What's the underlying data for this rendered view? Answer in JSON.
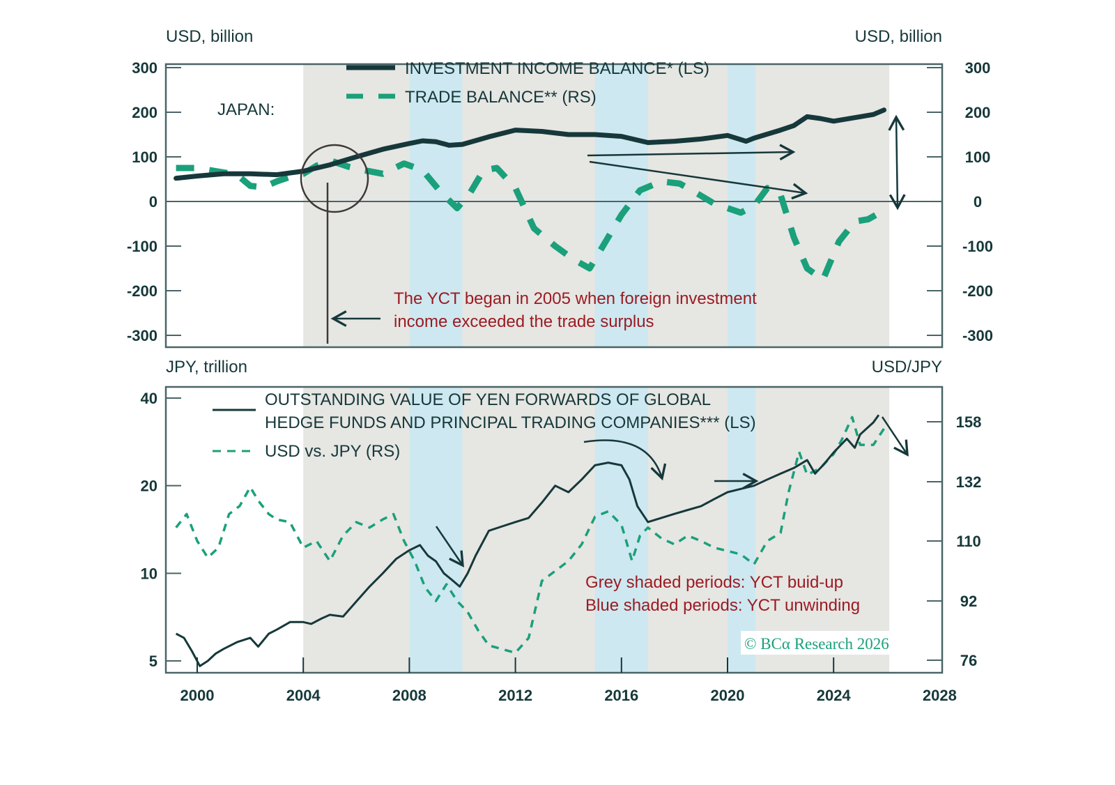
{
  "colors": {
    "dark": "#16383a",
    "green": "#1aa07a",
    "grey_shade": "#e6e6e3",
    "blue_shade": "#cde8f0",
    "annotation_red": "#9b1b22",
    "axis": "#4a6467"
  },
  "chart_data": [
    {
      "id": "top",
      "type": "line",
      "region_label": "JAPAN:",
      "left_axis_label": "USD, billion",
      "right_axis_label": "USD, billion",
      "ylim": [
        -300,
        300
      ],
      "yticks": [
        300,
        200,
        100,
        0,
        -100,
        -200,
        -300
      ],
      "yticks_right": [
        300,
        200,
        100,
        0,
        -100,
        -200,
        -300
      ],
      "xlim": [
        1998.8,
        2028
      ],
      "legend": [
        {
          "label": "INVESTMENT INCOME BALANCE* (LS)",
          "style": "solid-thick"
        },
        {
          "label": "TRADE BALANCE** (RS)",
          "style": "dashed"
        }
      ],
      "series": [
        {
          "name": "INVESTMENT INCOME BALANCE* (LS)",
          "axis": "left",
          "x": [
            1999.2,
            2000,
            2001,
            2002,
            2003,
            2004,
            2005,
            2006,
            2007,
            2008,
            2008.5,
            2009,
            2009.5,
            2010,
            2011,
            2012,
            2013,
            2014,
            2015,
            2016,
            2017,
            2018,
            2019,
            2020,
            2020.7,
            2021,
            2022,
            2022.5,
            2023,
            2023.5,
            2024,
            2025,
            2025.5,
            2025.9
          ],
          "values": [
            52,
            57,
            62,
            62,
            60,
            68,
            82,
            100,
            117,
            130,
            136,
            134,
            126,
            128,
            145,
            160,
            157,
            150,
            150,
            146,
            132,
            135,
            140,
            148,
            135,
            142,
            160,
            170,
            190,
            186,
            180,
            190,
            195,
            205
          ]
        },
        {
          "name": "TRADE BALANCE** (RS)",
          "axis": "right",
          "x": [
            1999.2,
            2000,
            2000.7,
            2001.5,
            2002,
            2002.5,
            2003,
            2003.5,
            2004,
            2004.5,
            2005,
            2005.7,
            2006.3,
            2007,
            2007.8,
            2008.5,
            2009.2,
            2009.8,
            2010.3,
            2010.8,
            2011.3,
            2012,
            2012.7,
            2013.5,
            2014.2,
            2014.8,
            2015.3,
            2016,
            2016.7,
            2017.5,
            2018.2,
            2018.8,
            2019.5,
            2020,
            2020.5,
            2021,
            2021.5,
            2022,
            2022.5,
            2023,
            2023.6,
            2024.2,
            2024.8,
            2025.3,
            2025.9
          ],
          "values": [
            75,
            75,
            68,
            60,
            35,
            32,
            45,
            55,
            62,
            80,
            92,
            78,
            70,
            62,
            85,
            70,
            20,
            -15,
            20,
            70,
            75,
            30,
            -60,
            -100,
            -130,
            -150,
            -100,
            -30,
            25,
            45,
            40,
            20,
            -5,
            -15,
            -25,
            -10,
            30,
            15,
            -80,
            -150,
            -175,
            -90,
            -45,
            -40,
            -20
          ]
        }
      ],
      "shading": [
        {
          "type": "grey",
          "from": 2004,
          "to": 2026.1
        },
        {
          "type": "blue",
          "from": 2008,
          "to": 2010
        },
        {
          "type": "blue",
          "from": 2015,
          "to": 2017
        },
        {
          "type": "blue",
          "from": 2020,
          "to": 2021.05
        }
      ],
      "annotations": [
        {
          "text_lines": [
            "The YCT began in 2005 when foreign investment",
            "income exceeded the trade surplus"
          ],
          "color": "red"
        }
      ]
    },
    {
      "id": "bottom",
      "type": "line",
      "left_axis_label": "JPY, trillion",
      "right_axis_label": "USD/JPY",
      "left_scale": "log",
      "ylim": [
        4.7,
        43
      ],
      "yticks": [
        40,
        20,
        10,
        5
      ],
      "ylim_right": [
        73.5,
        170
      ],
      "yticks_right": [
        158,
        132,
        110,
        92,
        76
      ],
      "xlim": [
        1998.8,
        2028
      ],
      "xticks": [
        2000,
        2004,
        2008,
        2012,
        2016,
        2020,
        2024,
        2028
      ],
      "legend": [
        {
          "label_lines": [
            "OUTSTANDING VALUE OF YEN FORWARDS OF GLOBAL",
            "HEDGE FUNDS AND PRINCIPAL TRADING COMPANIES*** (LS)"
          ],
          "style": "solid"
        },
        {
          "label": "USD vs. JPY (RS)",
          "style": "dashed"
        }
      ],
      "series": [
        {
          "name": "OUTSTANDING VALUE OF YEN FORWARDS (LS)",
          "axis": "left",
          "x": [
            1999.2,
            1999.5,
            1999.8,
            2000.1,
            2000.4,
            2000.7,
            2001,
            2001.5,
            2002,
            2002.3,
            2002.7,
            2003,
            2003.5,
            2004,
            2004.3,
            2004.7,
            2005,
            2005.5,
            2006,
            2006.5,
            2007,
            2007.5,
            2008,
            2008.4,
            2008.7,
            2009,
            2009.3,
            2009.6,
            2009.9,
            2010.2,
            2010.5,
            2011,
            2011.5,
            2012,
            2012.5,
            2013,
            2013.5,
            2014,
            2014.5,
            2015,
            2015.5,
            2016,
            2016.3,
            2016.6,
            2017,
            2017.5,
            2018,
            2018.5,
            2019,
            2019.5,
            2020,
            2020.5,
            2021,
            2021.5,
            2022,
            2022.5,
            2023,
            2023.3,
            2023.6,
            2024,
            2024.5,
            2024.8,
            2025,
            2025.5,
            2025.7
          ],
          "values": [
            6.2,
            6.0,
            5.4,
            4.8,
            5.0,
            5.3,
            5.5,
            5.8,
            6.0,
            5.6,
            6.2,
            6.4,
            6.8,
            6.8,
            6.7,
            7.0,
            7.2,
            7.1,
            8.0,
            9.0,
            10.0,
            11.2,
            12.0,
            12.5,
            11.5,
            11.0,
            10.0,
            9.5,
            9.0,
            10.0,
            11.5,
            14.0,
            14.5,
            15.0,
            15.5,
            17.5,
            20.0,
            19.0,
            21.0,
            23.5,
            24.0,
            23.5,
            21.0,
            17.0,
            15.0,
            15.5,
            16.0,
            16.5,
            17.0,
            18.0,
            19.0,
            19.5,
            20.0,
            21.0,
            22.0,
            23.0,
            24.5,
            22.0,
            23.5,
            26.0,
            29.0,
            27.0,
            30.0,
            33.0,
            35.0
          ]
        },
        {
          "name": "USD vs. JPY (RS)",
          "axis": "right",
          "x": [
            1999.2,
            1999.6,
            2000,
            2000.4,
            2000.8,
            2001.2,
            2001.6,
            2002,
            2002.3,
            2002.7,
            2003,
            2003.5,
            2004,
            2004.5,
            2005,
            2005.5,
            2006,
            2006.5,
            2007,
            2007.4,
            2007.8,
            2008.2,
            2008.6,
            2009,
            2009.4,
            2009.8,
            2010.2,
            2010.6,
            2011,
            2011.5,
            2012,
            2012.5,
            2013,
            2013.5,
            2014,
            2014.5,
            2015,
            2015.5,
            2016,
            2016.4,
            2016.7,
            2017,
            2017.5,
            2018,
            2018.5,
            2019,
            2019.5,
            2020,
            2020.5,
            2021,
            2021.5,
            2022,
            2022.3,
            2022.7,
            2023,
            2023.5,
            2024,
            2024.3,
            2024.7,
            2025,
            2025.5,
            2025.9
          ],
          "values": [
            115,
            120,
            110,
            105,
            108,
            120,
            123,
            130,
            125,
            120,
            118,
            117,
            108,
            110,
            104,
            112,
            117,
            115,
            118,
            120,
            110,
            104,
            96,
            92,
            97,
            92,
            89,
            84,
            80,
            79,
            78,
            82,
            98,
            101,
            104,
            109,
            119,
            121,
            116,
            104,
            112,
            115,
            111,
            109,
            112,
            110,
            108,
            107,
            106,
            103,
            110,
            113,
            128,
            145,
            135,
            138,
            144,
            150,
            160,
            148,
            148,
            155
          ]
        }
      ],
      "shading": [
        {
          "type": "grey",
          "from": 2004,
          "to": 2026.1
        },
        {
          "type": "blue",
          "from": 2008,
          "to": 2010
        },
        {
          "type": "blue",
          "from": 2015,
          "to": 2017
        },
        {
          "type": "blue",
          "from": 2020,
          "to": 2021.05
        }
      ],
      "annotations": [
        {
          "text_lines": [
            "Grey shaded periods: YCT buid-up",
            "Blue shaded periods: YCT unwinding"
          ],
          "color": "red"
        }
      ],
      "source": "© BCα Research 2026"
    }
  ]
}
